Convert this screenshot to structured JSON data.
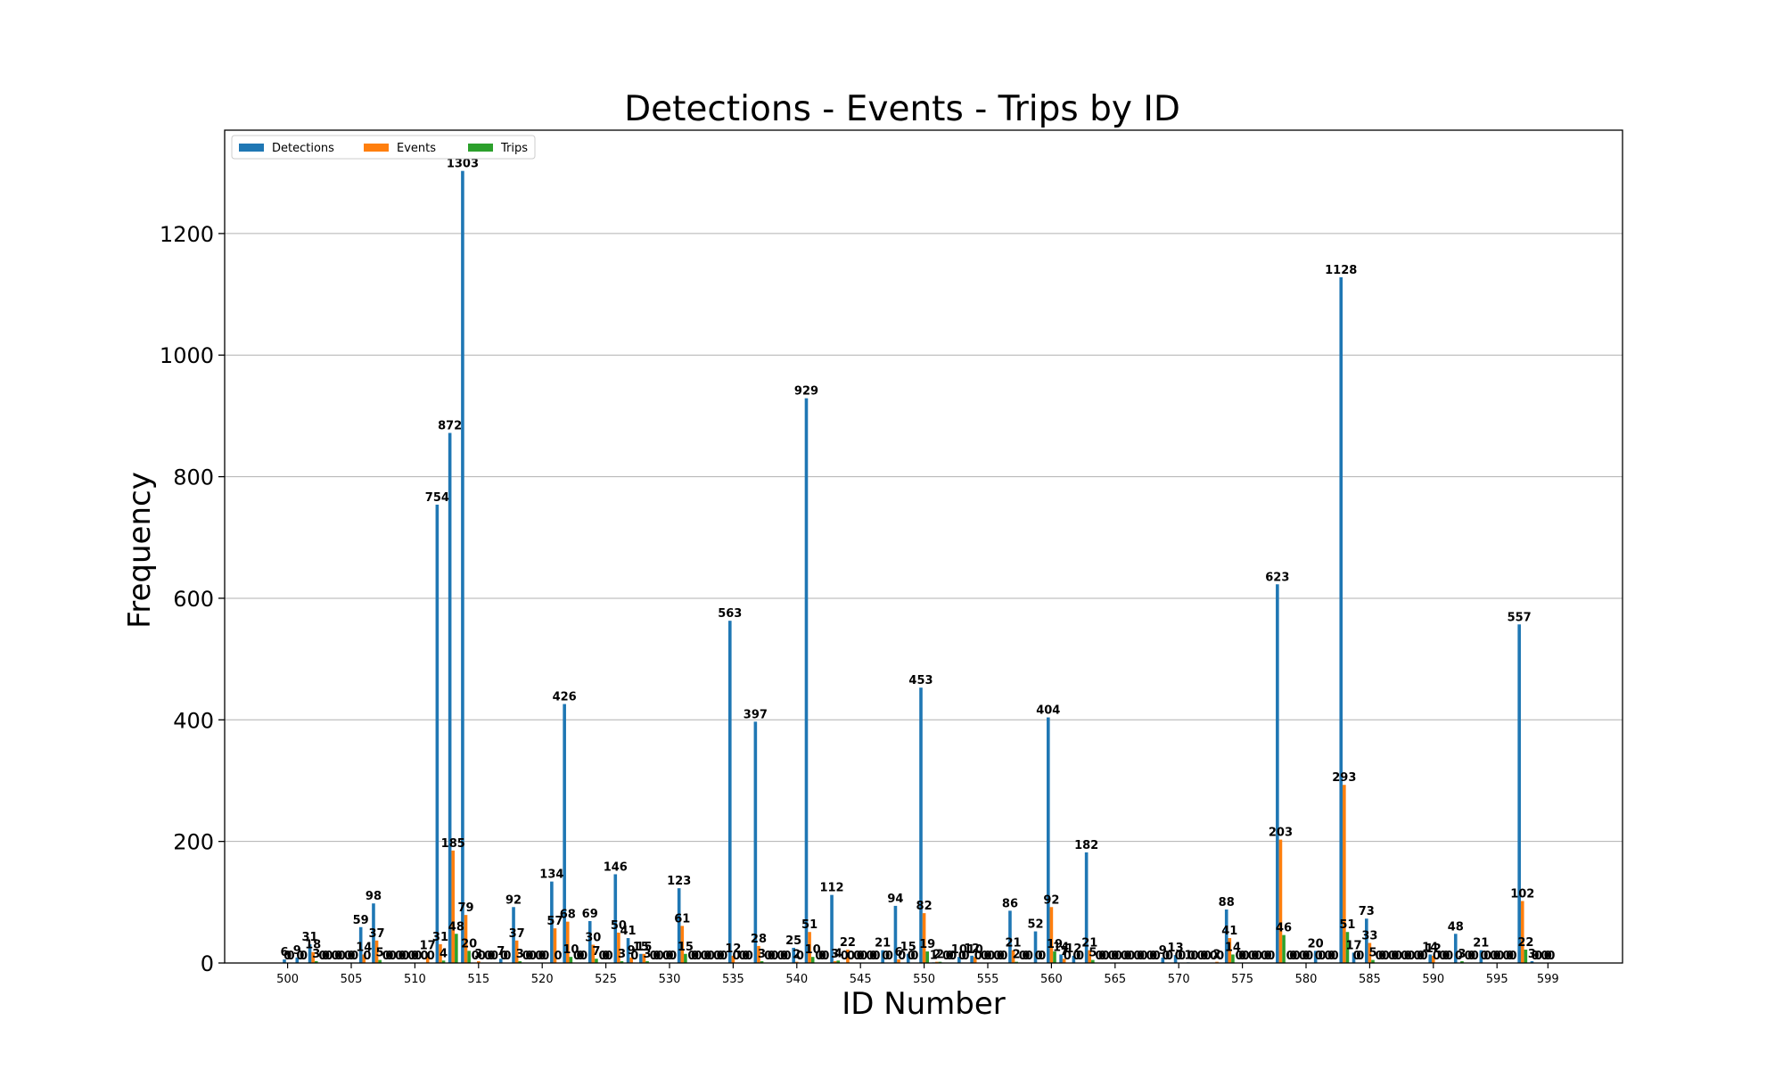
{
  "chart_data": {
    "type": "bar",
    "title": "Detections - Events - Trips by ID",
    "xlabel": "ID Number",
    "ylabel": "Frequency",
    "ylim": [
      0,
      1370
    ],
    "yticks": [
      0,
      200,
      400,
      600,
      800,
      1000,
      1200
    ],
    "xticks": [
      500,
      505,
      510,
      515,
      520,
      525,
      530,
      535,
      540,
      545,
      550,
      555,
      560,
      565,
      570,
      575,
      580,
      585,
      590,
      595,
      599
    ],
    "grid": "y",
    "legend_position": "top-left",
    "categories": [
      500,
      501,
      502,
      503,
      504,
      505,
      506,
      507,
      508,
      509,
      510,
      511,
      512,
      513,
      514,
      515,
      516,
      517,
      518,
      519,
      520,
      521,
      522,
      523,
      524,
      525,
      526,
      527,
      528,
      529,
      530,
      531,
      532,
      533,
      534,
      535,
      536,
      537,
      538,
      539,
      540,
      541,
      542,
      543,
      544,
      545,
      546,
      547,
      548,
      549,
      550,
      551,
      552,
      553,
      554,
      555,
      556,
      557,
      558,
      559,
      560,
      561,
      562,
      563,
      564,
      565,
      566,
      567,
      568,
      569,
      570,
      571,
      572,
      573,
      574,
      575,
      576,
      577,
      578,
      579,
      580,
      581,
      582,
      583,
      584,
      585,
      586,
      587,
      588,
      589,
      590,
      591,
      592,
      593,
      594,
      595,
      596,
      597,
      598,
      599
    ],
    "series": [
      {
        "name": "Detections",
        "color": "#1f77b4",
        "values": [
          6,
          9,
          31,
          0,
          0,
          0,
          59,
          98,
          0,
          0,
          0,
          0,
          754,
          872,
          1303,
          0,
          0,
          7,
          92,
          0,
          0,
          134,
          426,
          0,
          69,
          0,
          146,
          41,
          15,
          0,
          0,
          123,
          0,
          0,
          0,
          563,
          0,
          397,
          0,
          0,
          25,
          929,
          0,
          112,
          0,
          0,
          0,
          21,
          94,
          15,
          453,
          1,
          0,
          10,
          12,
          0,
          0,
          86,
          0,
          52,
          404,
          14,
          12,
          182,
          0,
          0,
          0,
          0,
          0,
          9,
          13,
          1,
          0,
          0,
          88,
          0,
          0,
          0,
          623,
          0,
          0,
          20,
          0,
          1128,
          17,
          73,
          0,
          0,
          0,
          0,
          14,
          0,
          48,
          0,
          21,
          0,
          0,
          557,
          3,
          0
        ]
      },
      {
        "name": "Events",
        "color": "#ff7f0e",
        "values": [
          0,
          0,
          18,
          0,
          0,
          0,
          14,
          37,
          0,
          0,
          0,
          17,
          31,
          185,
          79,
          3,
          0,
          0,
          37,
          0,
          0,
          57,
          68,
          0,
          30,
          0,
          50,
          9,
          15,
          0,
          0,
          61,
          0,
          0,
          0,
          12,
          0,
          28,
          0,
          0,
          2,
          51,
          0,
          3,
          22,
          0,
          0,
          0,
          6,
          0,
          82,
          2,
          0,
          0,
          10,
          0,
          0,
          21,
          0,
          0,
          92,
          7,
          0,
          21,
          0,
          0,
          0,
          0,
          0,
          0,
          0,
          0,
          0,
          2,
          41,
          0,
          0,
          0,
          203,
          0,
          0,
          0,
          0,
          293,
          0,
          33,
          0,
          0,
          0,
          0,
          12,
          0,
          0,
          0,
          0,
          0,
          0,
          102,
          0,
          0
        ]
      },
      {
        "name": "Trips",
        "color": "#2ca02c",
        "values": [
          0,
          0,
          3,
          0,
          0,
          0,
          0,
          5,
          0,
          0,
          0,
          0,
          4,
          48,
          20,
          0,
          0,
          0,
          3,
          0,
          0,
          0,
          10,
          0,
          7,
          0,
          3,
          0,
          3,
          0,
          0,
          15,
          0,
          0,
          0,
          0,
          0,
          3,
          0,
          0,
          0,
          10,
          0,
          4,
          0,
          0,
          0,
          0,
          0,
          0,
          19,
          2,
          0,
          0,
          0,
          0,
          0,
          2,
          0,
          0,
          19,
          0,
          0,
          5,
          0,
          0,
          0,
          0,
          0,
          0,
          0,
          0,
          0,
          0,
          14,
          0,
          0,
          0,
          46,
          0,
          0,
          0,
          0,
          51,
          0,
          5,
          0,
          0,
          0,
          0,
          0,
          0,
          3,
          0,
          0,
          0,
          0,
          22,
          0,
          0
        ]
      }
    ]
  }
}
